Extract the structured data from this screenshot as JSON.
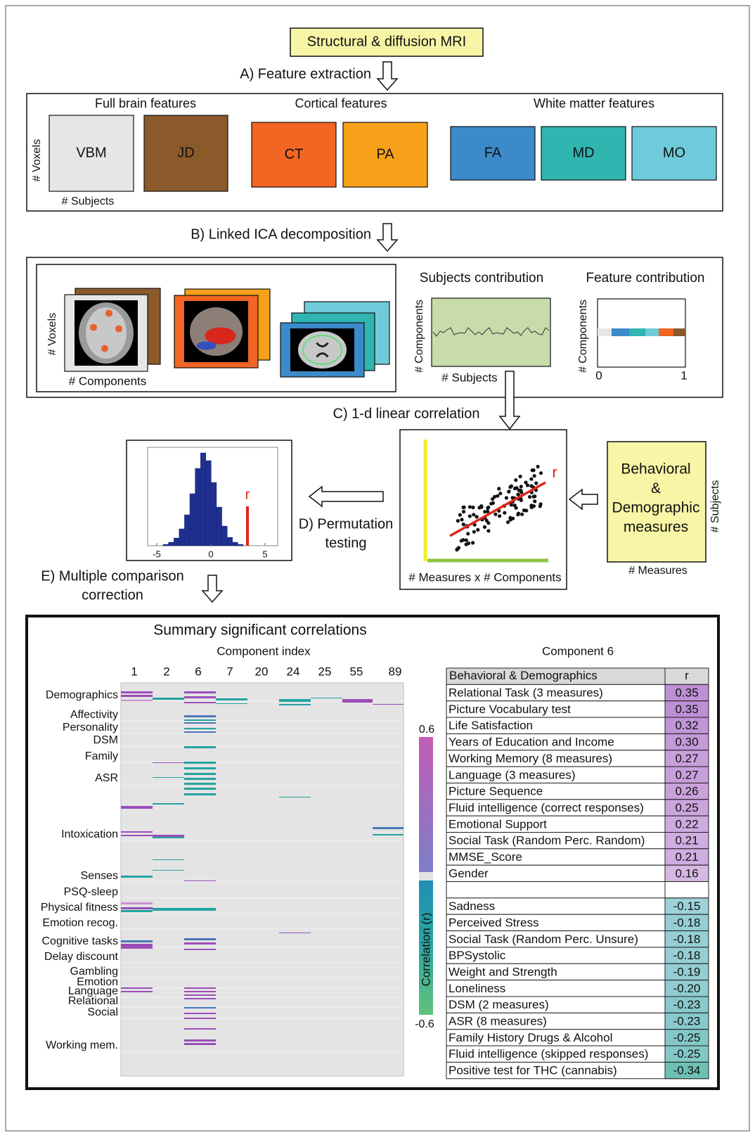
{
  "header": {
    "title": "Structural & diffusion MRI"
  },
  "steps": {
    "a": "A) Feature extraction",
    "b": "B) Linked ICA decomposition",
    "c": "C) 1-d linear correlation",
    "d": [
      "D) Permutation",
      "testing"
    ],
    "e": [
      "E) Multiple comparison",
      "correction"
    ]
  },
  "features": {
    "groups": [
      {
        "title": "Full brain features",
        "items": [
          "VBM",
          "JD"
        ]
      },
      {
        "title": "Cortical features",
        "items": [
          "CT",
          "PA"
        ]
      },
      {
        "title": "White matter features",
        "items": [
          "FA",
          "MD",
          "MO"
        ]
      }
    ],
    "y_label": "# Voxels",
    "x_label": "# Subjects"
  },
  "ica": {
    "y_label": "# Voxels",
    "x_label": "# Components",
    "subjects": {
      "title": "Subjects contribution",
      "y_label": "# Components",
      "x_label": "# Subjects"
    },
    "features": {
      "title": "Feature contribution",
      "y_label": "# Components",
      "xticks": [
        0,
        1
      ]
    }
  },
  "correlation": {
    "r_label": "r",
    "x_label": "# Measures x # Components"
  },
  "behavioral": {
    "lines": [
      "Behavioral",
      "&",
      "Demographic",
      "measures"
    ],
    "y_label": "# Subjects",
    "x_label": "# Measures"
  },
  "permutation": {
    "r_label": "r",
    "xticks": [
      -5,
      0,
      5
    ]
  },
  "summary": {
    "title": "Summary significant correlations",
    "x_label": "Component index",
    "components": [
      1,
      2,
      6,
      7,
      20,
      24,
      25,
      55,
      89
    ],
    "rows": [
      "Demographics",
      "Affectivity",
      "Personality",
      "DSM",
      "Family",
      "ASR",
      "Intoxication",
      "Senses",
      "PSQ-sleep",
      "Physical fitness",
      "Emotion recog.",
      "Cognitive tasks",
      "Delay discount",
      "Gambling",
      "Emotion",
      "Language",
      "Relational",
      "Social",
      "Working mem."
    ],
    "colorbar": {
      "ticks": [
        0.6,
        -0.6
      ],
      "label": "Correlation (r)"
    }
  },
  "table": {
    "title": "Component 6",
    "header": [
      "Behavioral & Demographics",
      "r"
    ],
    "positive": [
      [
        "Relational Task (3 measures)",
        "0.35"
      ],
      [
        "Picture Vocabulary test",
        "0.35"
      ],
      [
        "Life Satisfaction",
        "0.32"
      ],
      [
        "Years of Education and Income",
        "0.30"
      ],
      [
        "Working Memory (8 measures)",
        "0.27"
      ],
      [
        "Language (3 measures)",
        "0.27"
      ],
      [
        "Picture Sequence",
        "0.26"
      ],
      [
        "Fluid intelligence (correct responses)",
        "0.25"
      ],
      [
        "Emotional Support",
        "0.22"
      ],
      [
        "Social Task (Random Perc. Random)",
        "0.21"
      ],
      [
        "MMSE_Score",
        "0.21"
      ],
      [
        "Gender",
        "0.16"
      ]
    ],
    "negative": [
      [
        "Sadness",
        "-0.15"
      ],
      [
        "Perceived Stress",
        "-0.18"
      ],
      [
        "Social Task (Random Perc. Unsure)",
        "-0.18"
      ],
      [
        "BPSystolic",
        "-0.18"
      ],
      [
        "Weight and Strength",
        "-0.19"
      ],
      [
        "Loneliness",
        "-0.20"
      ],
      [
        "DSM (2 measures)",
        "-0.23"
      ],
      [
        "ASR (8 measures)",
        "-0.23"
      ],
      [
        "Family History Drugs & Alcohol",
        "-0.25"
      ],
      [
        "Fluid intelligence (skipped responses)",
        "-0.25"
      ],
      [
        "Positive test for THC (cannabis)",
        "-0.34"
      ]
    ]
  }
}
